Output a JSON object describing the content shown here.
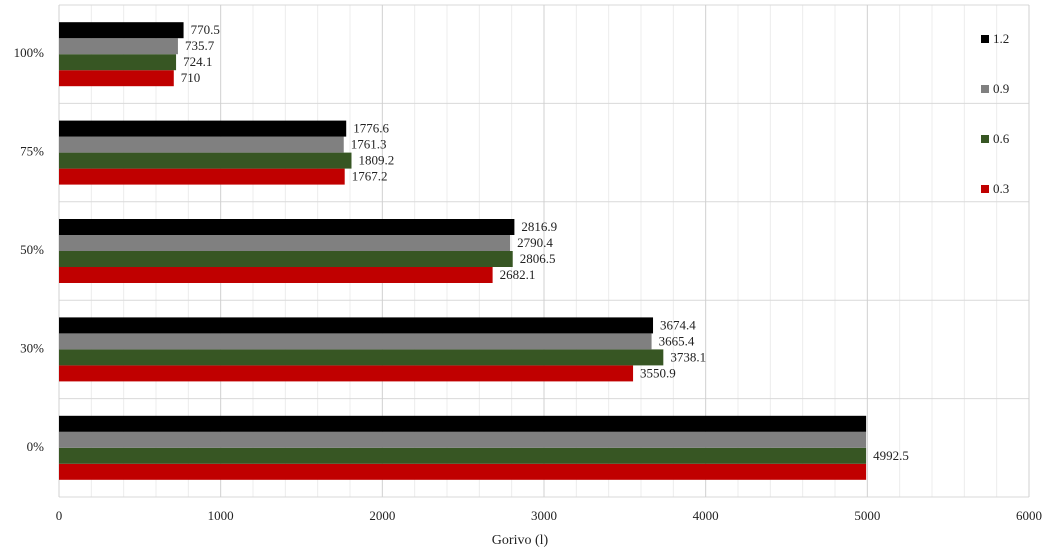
{
  "chart_data": {
    "type": "hbar",
    "x_label": "Gorivo (l)",
    "categories": [
      "0%",
      "30%",
      "50%",
      "75%",
      "100%"
    ],
    "series": [
      {
        "name": "0.3",
        "color": "#c00000",
        "values": [
          4992.5,
          3550.9,
          2682.1,
          1767.2,
          710
        ],
        "value_labels": [
          null,
          "3550.9",
          "2682.1",
          "1767.2",
          "710"
        ]
      },
      {
        "name": "0.6",
        "color": "#375623",
        "values": [
          4992.5,
          3738.1,
          2806.5,
          1809.2,
          724.1
        ]
      },
      {
        "name": "0.9",
        "color": "#808080",
        "values": [
          4992.5,
          3665.4,
          2790.4,
          1761.3,
          735.7
        ],
        "value_labels": [
          null,
          "3665.4",
          "2790.4",
          "1761.3",
          "735.7"
        ]
      },
      {
        "name": "1.2",
        "color": "#000000",
        "values": [
          4992.5,
          3674.4,
          2816.9,
          1776.6,
          770.5
        ],
        "value_labels": [
          null,
          "3674.4",
          "2816.9",
          "1776.6",
          "770.5"
        ]
      }
    ],
    "xlim": [
      0,
      6000
    ],
    "xticks": [
      0,
      1000,
      2000,
      3000,
      4000,
      5000,
      6000
    ],
    "grid": true,
    "legend": "right"
  }
}
